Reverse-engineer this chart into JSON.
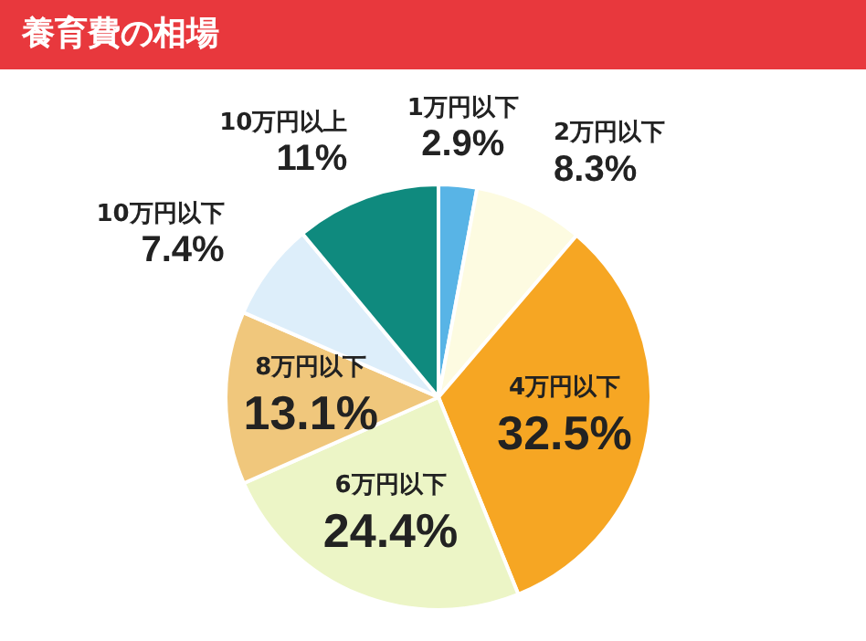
{
  "chart_data": {
    "type": "pie",
    "title": "養育費の相場",
    "categories": [
      "1万円以下",
      "2万円以下",
      "4万円以下",
      "6万円以下",
      "8万円以下",
      "10万円以下",
      "10万円以上"
    ],
    "values": [
      2.9,
      8.3,
      32.5,
      24.4,
      13.1,
      7.4,
      11
    ],
    "colors": [
      "#58b4e6",
      "#fdfbe1",
      "#f6a623",
      "#ecf5c6",
      "#f0c77c",
      "#ddeefa",
      "#0f8a7e"
    ],
    "value_labels": [
      "2.9%",
      "8.3%",
      "32.5%",
      "24.4%",
      "13.1%",
      "7.4%",
      "11%"
    ]
  }
}
